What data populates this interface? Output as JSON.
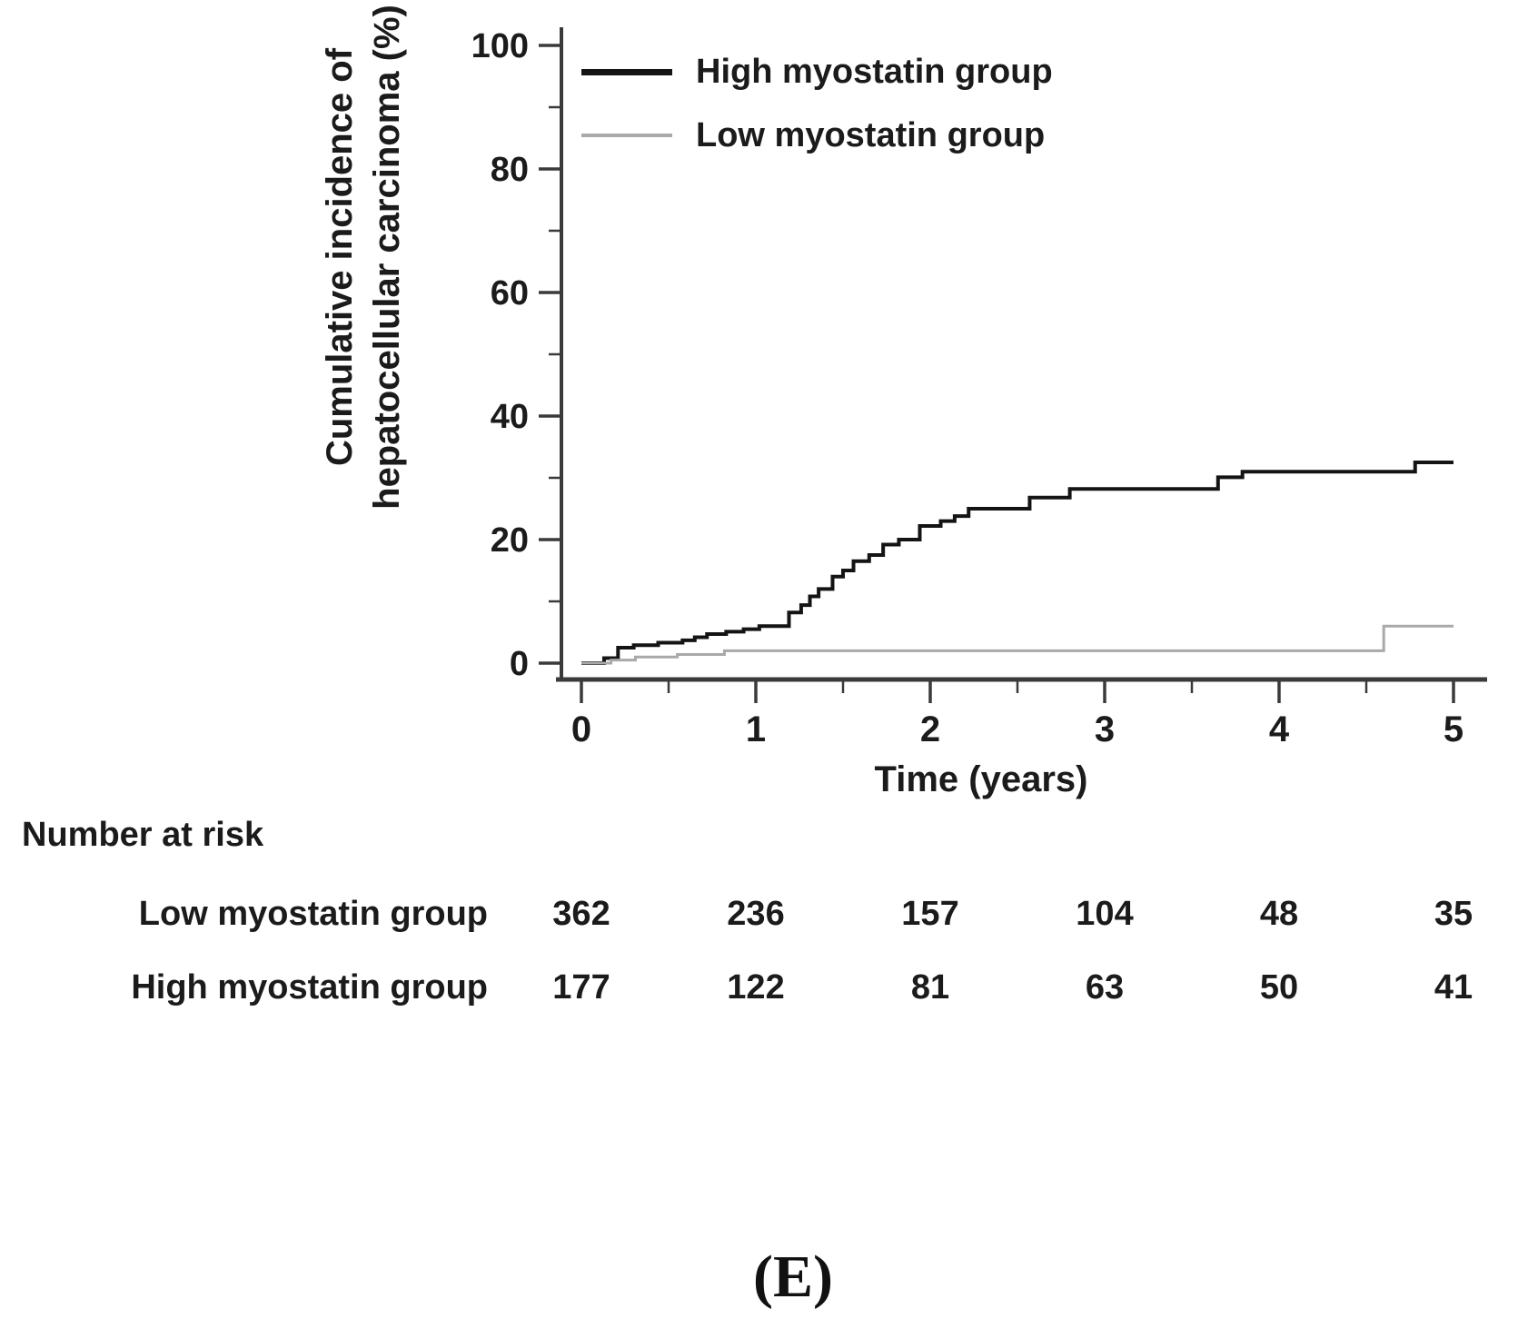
{
  "figure": {
    "caption": "(E)",
    "background": "#ffffff"
  },
  "chart_data": {
    "type": "line",
    "subtype": "cumulative-incidence-step",
    "title": "",
    "xlabel": "Time (years)",
    "ylabel_lines": [
      "Cumulative incidence of",
      "hepatocellular carcinoma (%)"
    ],
    "xlim": [
      0,
      5
    ],
    "ylim": [
      0,
      100
    ],
    "x_ticks": [
      0,
      1,
      2,
      3,
      4,
      5
    ],
    "x_minor_ticks": [
      0.5,
      1.5,
      2.5,
      3.5,
      4.5
    ],
    "y_ticks": [
      0,
      20,
      40,
      60,
      80,
      100
    ],
    "y_minor_ticks": [
      10,
      30,
      50,
      70,
      90
    ],
    "grid": false,
    "legend_position": "top-left-inside",
    "axis_color": "#3a3a3a",
    "text_color": "#1b1b1b",
    "series": [
      {
        "name": "High myostatin group",
        "color": "#141414",
        "line_width": 4,
        "points": [
          [
            0,
            0
          ],
          [
            0.13,
            0.8
          ],
          [
            0.21,
            2.5
          ],
          [
            0.3,
            2.9
          ],
          [
            0.44,
            3.3
          ],
          [
            0.58,
            3.7
          ],
          [
            0.65,
            4.2
          ],
          [
            0.72,
            4.7
          ],
          [
            0.83,
            5.1
          ],
          [
            0.93,
            5.5
          ],
          [
            1.02,
            6.0
          ],
          [
            1.19,
            8.2
          ],
          [
            1.26,
            9.4
          ],
          [
            1.31,
            10.8
          ],
          [
            1.36,
            12.0
          ],
          [
            1.44,
            14.0
          ],
          [
            1.5,
            15.0
          ],
          [
            1.56,
            16.5
          ],
          [
            1.65,
            17.5
          ],
          [
            1.73,
            19.2
          ],
          [
            1.82,
            20.0
          ],
          [
            1.94,
            22.2
          ],
          [
            2.06,
            23.0
          ],
          [
            2.14,
            23.8
          ],
          [
            2.22,
            25.0
          ],
          [
            2.57,
            26.8
          ],
          [
            2.8,
            28.2
          ],
          [
            3.65,
            30.1
          ],
          [
            3.79,
            31.0
          ],
          [
            4.78,
            32.5
          ],
          [
            5,
            32.5
          ]
        ]
      },
      {
        "name": "Low myostatin group",
        "color": "#a9a9a9",
        "line_width": 3,
        "points": [
          [
            0,
            0
          ],
          [
            0.17,
            0.5
          ],
          [
            0.31,
            1.0
          ],
          [
            0.55,
            1.4
          ],
          [
            0.82,
            2.0
          ],
          [
            4.6,
            6.0
          ],
          [
            5,
            6.0
          ]
        ]
      }
    ],
    "risk_table": {
      "title": "Number at risk",
      "rows": [
        {
          "label": "Low myostatin group",
          "values": [
            362,
            236,
            157,
            104,
            48,
            35
          ]
        },
        {
          "label": "High myostatin group",
          "values": [
            177,
            122,
            81,
            63,
            50,
            41
          ]
        }
      ]
    }
  }
}
